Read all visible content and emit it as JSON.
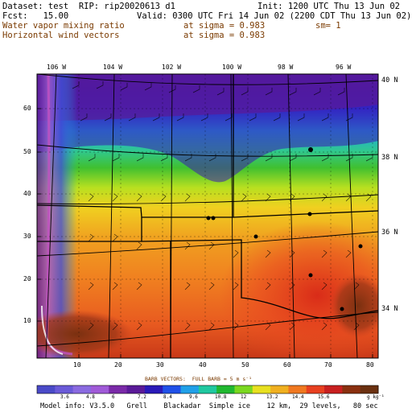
{
  "header": {
    "dataset_line": "Dataset: test  RIP: rip20020613 d1",
    "init_line": "Init: 1200 UTC Thu 13 Jun 02",
    "fcst_line": "Fcst:   15.00",
    "valid_line": "Valid: 0300 UTC Fri 14 Jun 02 (2200 CDT Thu 13 Jun 02)"
  },
  "fields": {
    "field1_label": "Water vapor mixing ratio",
    "field1_sigma": "at sigma = 0.983",
    "field1_sm": "sm= 1",
    "field2_label": "Horizontal wind vectors",
    "field2_sigma": "at sigma = 0.983"
  },
  "map": {
    "lon_labels": [
      "106 W",
      "104 W",
      "102 W",
      "100 W",
      "98 W",
      "96 W"
    ],
    "lat_labels": [
      "40 N",
      "38 N",
      "36 N",
      "34 N"
    ],
    "y_ticks": [
      "60",
      "50",
      "40",
      "30",
      "20",
      "10"
    ],
    "x_ticks": [
      "10",
      "20",
      "30",
      "40",
      "50",
      "60",
      "70",
      "80"
    ]
  },
  "legend": {
    "barbs_title": "BARB VECTORS:  FULL BARB = 5 m s⁻¹",
    "values": [
      "3.6",
      "4.8",
      "6",
      "7.2",
      "8.4",
      "9.6",
      "10.8",
      "12",
      "13.2",
      "14.4",
      "15.6"
    ],
    "units": "g kg⁻¹",
    "colors": [
      "#4a4ac8",
      "#6a5ad8",
      "#8a6ae0",
      "#a05ad8",
      "#7a2aa8",
      "#5a1a98",
      "#2a1ab8",
      "#2050e8",
      "#20a0e8",
      "#20c8a0",
      "#20b830",
      "#7ad820",
      "#e8e020",
      "#f0b020",
      "#f07820",
      "#e84020",
      "#c82020",
      "#8a3010",
      "#6a3010"
    ]
  },
  "model_info": "Model info: V3.5.0   Grell    Blackadar  Simple ice    12 km,  29 levels,   80 sec"
}
